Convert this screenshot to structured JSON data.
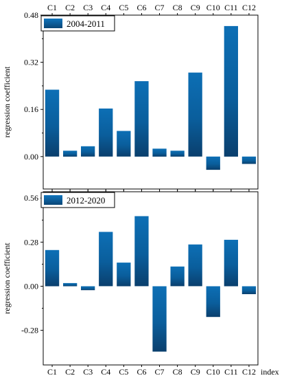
{
  "chart_data": [
    {
      "type": "bar",
      "legend": "2004-2011",
      "legend_position": "top-left",
      "ylabel": "regression coefficient",
      "ylim": [
        -0.11,
        0.48
      ],
      "yticks": [
        "0.00",
        "0.16",
        "0.32",
        "0.48"
      ],
      "ytick_values": [
        0.0,
        0.16,
        0.32,
        0.48
      ],
      "categories": [
        "C1",
        "C2",
        "C3",
        "C4",
        "C5",
        "C6",
        "C7",
        "C8",
        "C9",
        "C10",
        "C11",
        "C12"
      ],
      "values": [
        0.227,
        0.02,
        0.035,
        0.163,
        0.087,
        0.256,
        0.027,
        0.02,
        0.285,
        -0.045,
        0.443,
        -0.025
      ],
      "grid": false,
      "color": "#0a63a4"
    },
    {
      "type": "bar",
      "legend": "2012-2020",
      "legend_position": "top-left",
      "ylabel": "regression coefficient",
      "xlabel": "index",
      "ylim": [
        -0.5,
        0.6
      ],
      "yticks": [
        "-0.28",
        "0.00",
        "0.28",
        "0.56"
      ],
      "ytick_values": [
        -0.28,
        0.0,
        0.28,
        0.56
      ],
      "categories": [
        "C1",
        "C2",
        "C3",
        "C4",
        "C5",
        "C6",
        "C7",
        "C8",
        "C9",
        "C10",
        "C11",
        "C12"
      ],
      "values": [
        0.23,
        0.02,
        -0.025,
        0.345,
        0.15,
        0.445,
        -0.415,
        0.125,
        0.265,
        -0.195,
        0.295,
        -0.05
      ],
      "grid": false,
      "color": "#0a63a4"
    }
  ]
}
